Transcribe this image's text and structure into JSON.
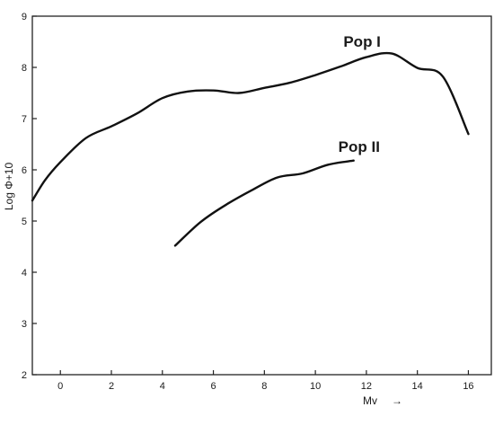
{
  "chart_data": {
    "type": "line",
    "title": "",
    "xlabel": "Mv",
    "xlabel_arrow": "→",
    "ylabel": "Log Φ+10",
    "xlim": [
      -1.1,
      16.9
    ],
    "ylim": [
      2,
      9
    ],
    "xticks": [
      0,
      2,
      4,
      6,
      8,
      10,
      12,
      14,
      16
    ],
    "yticks": [
      2,
      3,
      4,
      5,
      6,
      7,
      8,
      9
    ],
    "grid": false,
    "legend": "none",
    "line_color": "#111111",
    "series": [
      {
        "name": "Pop I",
        "label_at": [
          11.1,
          8.4
        ],
        "x": [
          -1.1,
          -0.6,
          0,
          1,
          2,
          3,
          4,
          5,
          6,
          7,
          8,
          9,
          10,
          11,
          12,
          13,
          14,
          15,
          16
        ],
        "y": [
          5.4,
          5.8,
          6.15,
          6.62,
          6.85,
          7.1,
          7.4,
          7.53,
          7.55,
          7.5,
          7.6,
          7.7,
          7.85,
          8.02,
          8.2,
          8.27,
          7.99,
          7.82,
          6.7
        ]
      },
      {
        "name": "Pop II",
        "label_at": [
          10.9,
          6.35
        ],
        "x": [
          4.5,
          5.5,
          6.5,
          7.5,
          8.5,
          9.5,
          10.5,
          11.5
        ],
        "y": [
          4.52,
          4.98,
          5.32,
          5.6,
          5.85,
          5.93,
          6.1,
          6.18
        ]
      }
    ]
  }
}
